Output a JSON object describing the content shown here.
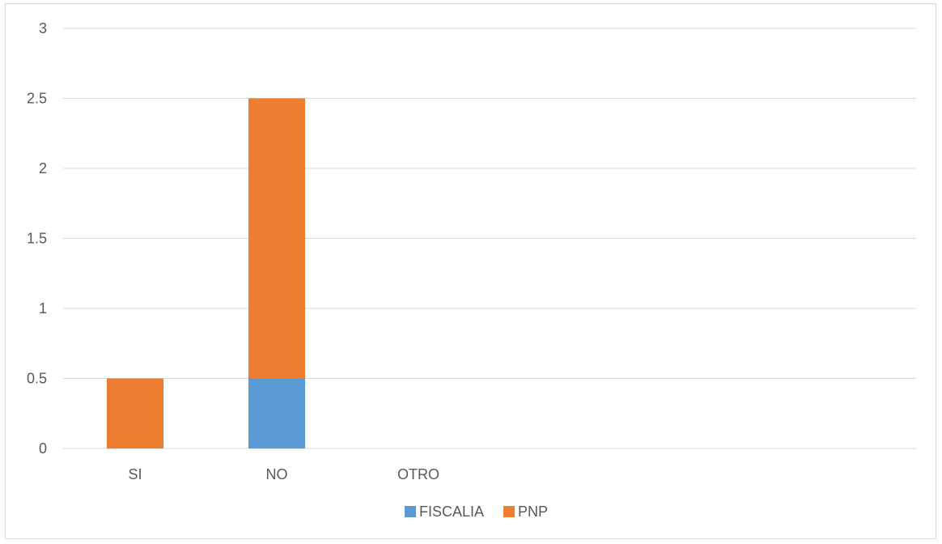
{
  "chart_data": {
    "type": "bar",
    "stacked": true,
    "categories": [
      "SI",
      "NO",
      "OTRO"
    ],
    "series": [
      {
        "name": "FISCALIA",
        "values": [
          0,
          0.5,
          0
        ],
        "color": "#5b9bd5"
      },
      {
        "name": "PNP",
        "values": [
          0.5,
          2.0,
          0
        ],
        "color": "#ed7d31"
      }
    ],
    "ylim": [
      0,
      3
    ],
    "yticks": [
      "0",
      "0.5",
      "1",
      "1.5",
      "2",
      "2.5",
      "3"
    ],
    "grid": true,
    "legend_position": "bottom",
    "gridline_color": "#d9d9d9",
    "axis_text_color": "#595959"
  }
}
